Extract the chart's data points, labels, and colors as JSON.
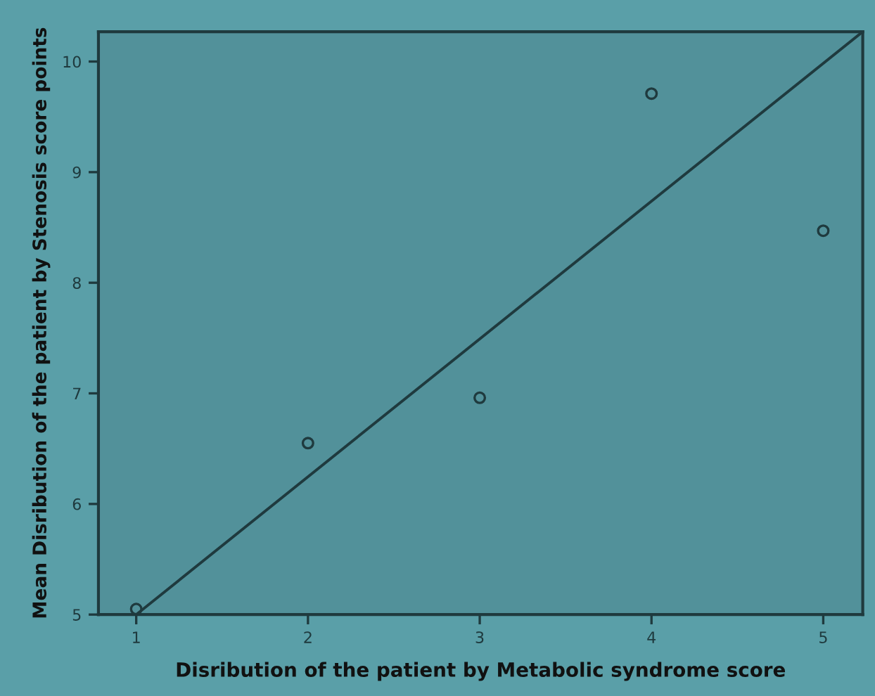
{
  "chart_data": {
    "type": "scatter",
    "xlabel": "Disribution of the patient by Metabolic syndrome score",
    "ylabel": "Mean Disribution of the patient by Stenosis score points",
    "x": [
      1,
      2,
      3,
      4,
      5
    ],
    "series": [
      {
        "color": "#1f3a3e",
        "marker": "circle",
        "values": [
          5.05,
          6.55,
          6.96,
          9.71,
          8.47
        ]
      },
      {
        "type": "line",
        "color": "#1f3a3e",
        "x": [
          1,
          5.23
        ],
        "values": [
          5.0,
          10.27
        ],
        "marker": "none",
        "line_style": "solid"
      }
    ],
    "xlim": [
      0.78,
      5.23
    ],
    "ylim": [
      5,
      10.27
    ],
    "xticks": [
      1,
      2,
      3,
      4,
      5
    ],
    "yticks": [
      5,
      6,
      7,
      8,
      9,
      10
    ],
    "grid": false,
    "legend": false
  }
}
